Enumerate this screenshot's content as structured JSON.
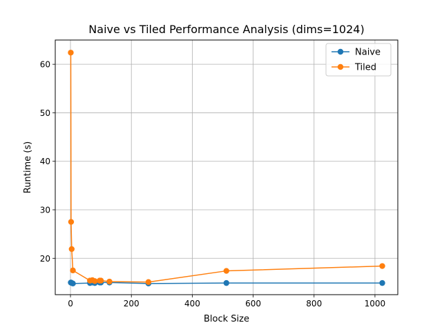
{
  "chart_data": {
    "type": "line",
    "title": "Naive vs Tiled Performance Analysis (dims=1024)",
    "xlabel": "Block Size",
    "ylabel": "Runtime (s)",
    "xlim": [
      -50,
      1075
    ],
    "ylim": [
      12.5,
      65
    ],
    "xticks": [
      0,
      200,
      400,
      600,
      800,
      1000
    ],
    "yticks": [
      20,
      30,
      40,
      50,
      60
    ],
    "grid": true,
    "legend_position": "top-right",
    "series": [
      {
        "name": "Naive",
        "color": "#1f77b4",
        "points": [
          [
            1,
            15.0
          ],
          [
            2,
            15.0
          ],
          [
            4,
            14.9
          ],
          [
            8,
            14.8
          ],
          [
            64,
            14.9
          ],
          [
            72,
            15.0
          ],
          [
            80,
            14.9
          ],
          [
            96,
            15.0
          ],
          [
            100,
            15.0
          ],
          [
            128,
            15.0
          ],
          [
            256,
            14.8
          ],
          [
            512,
            14.9
          ],
          [
            1024,
            14.9
          ]
        ]
      },
      {
        "name": "Tiled",
        "color": "#ff7f0e",
        "points": [
          [
            1,
            62.4
          ],
          [
            2,
            27.5
          ],
          [
            4,
            21.9
          ],
          [
            8,
            17.5
          ],
          [
            64,
            15.4
          ],
          [
            72,
            15.5
          ],
          [
            80,
            15.3
          ],
          [
            96,
            15.4
          ],
          [
            100,
            15.4
          ],
          [
            128,
            15.2
          ],
          [
            256,
            15.1
          ],
          [
            512,
            17.4
          ],
          [
            1024,
            18.4
          ]
        ]
      }
    ]
  }
}
